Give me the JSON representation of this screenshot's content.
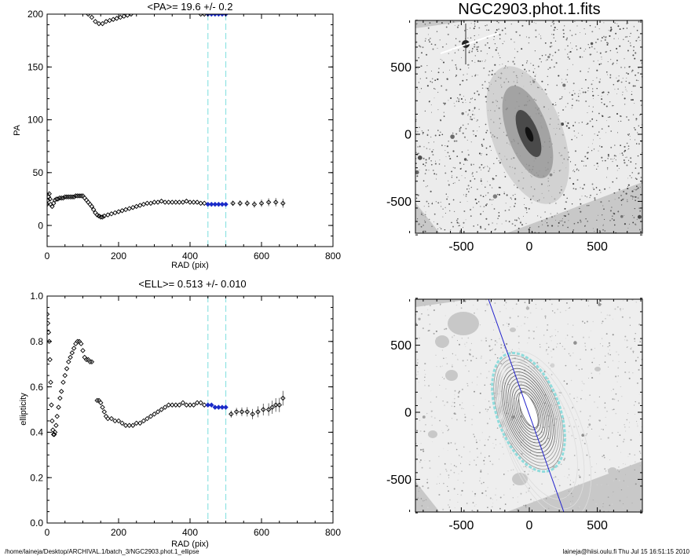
{
  "footer": {
    "path": "/home/laineja/Desktop/ARCHIVAL.1/batch_3/NGC2903.phot.1_ellipse",
    "stamp": "laineja@hiisi.oulu.fi  Thu Jul 15 16:51:15 2010"
  },
  "colors": {
    "axis": "#000000",
    "marker": "#000000",
    "selected_marker": "#1a2bc8",
    "band_line": "#8fe3e3",
    "image_bg": "#c8c8c8",
    "image_field": "#eeeeee",
    "contour_band": "#8fdcdc",
    "pa_line": "#2222cc"
  },
  "chart_data": [
    {
      "id": "pa",
      "type": "scatter",
      "title": "<PA>=  19.6 +/-   0.2",
      "xlabel": "RAD (pix)",
      "ylabel": "PA",
      "xlim": [
        0,
        800
      ],
      "ylim": [
        -20,
        200
      ],
      "xticks": [
        "0",
        "200",
        "400",
        "600",
        "800"
      ],
      "yticks": [
        "0",
        "50",
        "100",
        "150",
        "200"
      ],
      "band": [
        450,
        500
      ],
      "series": [
        {
          "points": [
            [
              0,
              20
            ],
            [
              2,
              24
            ],
            [
              4,
              27
            ],
            [
              6,
              30
            ],
            [
              8,
              25
            ],
            [
              10,
              20
            ],
            [
              14,
              18
            ],
            [
              18,
              21
            ],
            [
              22,
              24
            ],
            [
              26,
              25
            ],
            [
              30,
              25
            ],
            [
              35,
              26
            ],
            [
              40,
              26
            ],
            [
              45,
              26
            ],
            [
              50,
              27
            ],
            [
              55,
              27
            ],
            [
              60,
              27
            ],
            [
              65,
              27
            ],
            [
              70,
              27
            ],
            [
              75,
              27
            ],
            [
              80,
              28
            ],
            [
              85,
              28
            ],
            [
              90,
              28
            ],
            [
              95,
              28
            ],
            [
              100,
              28
            ],
            [
              105,
              26
            ],
            [
              110,
              24
            ],
            [
              115,
              22
            ],
            [
              120,
              20
            ],
            [
              125,
              18
            ],
            [
              130,
              15
            ],
            [
              135,
              12
            ],
            [
              140,
              10
            ],
            [
              145,
              9
            ],
            [
              150,
              8
            ],
            [
              155,
              8
            ],
            [
              160,
              9
            ],
            [
              170,
              10
            ],
            [
              180,
              11
            ],
            [
              190,
              12
            ],
            [
              200,
              13
            ],
            [
              210,
              14
            ],
            [
              220,
              15
            ],
            [
              230,
              16
            ],
            [
              240,
              17
            ],
            [
              250,
              18
            ],
            [
              260,
              19
            ],
            [
              270,
              20
            ],
            [
              280,
              21
            ],
            [
              290,
              21
            ],
            [
              300,
              22
            ],
            [
              310,
              22
            ],
            [
              320,
              23
            ],
            [
              330,
              22
            ],
            [
              340,
              22
            ],
            [
              350,
              22
            ],
            [
              360,
              22
            ],
            [
              370,
              22
            ],
            [
              380,
              22
            ],
            [
              390,
              23
            ],
            [
              400,
              22
            ],
            [
              410,
              22
            ],
            [
              420,
              22
            ],
            [
              430,
              21
            ],
            [
              440,
              21
            ],
            [
              450,
              20
            ],
            [
              460,
              20
            ],
            [
              470,
              20
            ],
            [
              480,
              20
            ],
            [
              490,
              20
            ],
            [
              500,
              20
            ],
            [
              520,
              21
            ],
            [
              540,
              21
            ],
            [
              560,
              21
            ],
            [
              580,
              20
            ],
            [
              600,
              21
            ],
            [
              620,
              22
            ],
            [
              640,
              22
            ],
            [
              660,
              21
            ]
          ]
        },
        {
          "points": [
            [
              115,
              200
            ],
            [
              125,
              197
            ],
            [
              135,
              193
            ],
            [
              145,
              191
            ],
            [
              155,
              191
            ],
            [
              165,
              193
            ],
            [
              175,
              194
            ],
            [
              185,
              195
            ],
            [
              195,
              196
            ],
            [
              205,
              197
            ],
            [
              215,
              198
            ],
            [
              225,
              199
            ],
            [
              235,
              200
            ],
            [
              430,
              200
            ],
            [
              440,
              200
            ],
            [
              450,
              200
            ],
            [
              460,
              200
            ],
            [
              470,
              200
            ],
            [
              480,
              200
            ],
            [
              490,
              200
            ],
            [
              500,
              200
            ]
          ]
        }
      ]
    },
    {
      "id": "ell",
      "type": "scatter",
      "title": "<ELL>= 0.513 +/-  0.010",
      "xlabel": "RAD (pix)",
      "ylabel": "ellipticity",
      "xlim": [
        0,
        800
      ],
      "ylim": [
        0.0,
        1.0
      ],
      "xticks": [
        "0",
        "200",
        "400",
        "600",
        "800"
      ],
      "yticks": [
        "0.0",
        "0.2",
        "0.4",
        "0.6",
        "0.8",
        "1.0"
      ],
      "band": [
        450,
        500
      ],
      "series": [
        {
          "points": [
            [
              0,
              0.92
            ],
            [
              2,
              0.88
            ],
            [
              4,
              0.84
            ],
            [
              6,
              0.8
            ],
            [
              8,
              0.72
            ],
            [
              10,
              0.62
            ],
            [
              12,
              0.52
            ],
            [
              14,
              0.45
            ],
            [
              16,
              0.41
            ],
            [
              18,
              0.39
            ],
            [
              20,
              0.39
            ],
            [
              22,
              0.4
            ],
            [
              25,
              0.43
            ],
            [
              28,
              0.47
            ],
            [
              32,
              0.51
            ],
            [
              36,
              0.55
            ],
            [
              40,
              0.58
            ],
            [
              45,
              0.62
            ],
            [
              50,
              0.65
            ],
            [
              55,
              0.68
            ],
            [
              60,
              0.71
            ],
            [
              65,
              0.73
            ],
            [
              70,
              0.75
            ],
            [
              75,
              0.77
            ],
            [
              80,
              0.79
            ],
            [
              85,
              0.8
            ],
            [
              90,
              0.8
            ],
            [
              95,
              0.79
            ],
            [
              100,
              0.76
            ],
            [
              105,
              0.73
            ],
            [
              110,
              0.72
            ],
            [
              115,
              0.72
            ],
            [
              120,
              0.71
            ],
            [
              125,
              0.71
            ],
            [
              140,
              0.54
            ],
            [
              145,
              0.54
            ],
            [
              150,
              0.53
            ],
            [
              155,
              0.51
            ],
            [
              160,
              0.49
            ],
            [
              165,
              0.47
            ],
            [
              170,
              0.46
            ],
            [
              180,
              0.46
            ],
            [
              190,
              0.45
            ],
            [
              200,
              0.45
            ],
            [
              210,
              0.44
            ],
            [
              220,
              0.43
            ],
            [
              230,
              0.43
            ],
            [
              240,
              0.43
            ],
            [
              250,
              0.44
            ],
            [
              260,
              0.44
            ],
            [
              270,
              0.45
            ],
            [
              280,
              0.46
            ],
            [
              290,
              0.47
            ],
            [
              300,
              0.48
            ],
            [
              310,
              0.49
            ],
            [
              320,
              0.5
            ],
            [
              330,
              0.51
            ],
            [
              340,
              0.52
            ],
            [
              350,
              0.52
            ],
            [
              360,
              0.52
            ],
            [
              370,
              0.52
            ],
            [
              380,
              0.53
            ],
            [
              390,
              0.52
            ],
            [
              400,
              0.52
            ],
            [
              410,
              0.52
            ],
            [
              420,
              0.53
            ],
            [
              430,
              0.53
            ],
            [
              440,
              0.52
            ],
            [
              450,
              0.52
            ],
            [
              460,
              0.52
            ],
            [
              470,
              0.51
            ],
            [
              480,
              0.51
            ],
            [
              490,
              0.51
            ],
            [
              500,
              0.51
            ],
            [
              515,
              0.48
            ],
            [
              530,
              0.49
            ],
            [
              545,
              0.49
            ],
            [
              560,
              0.49
            ],
            [
              575,
              0.48
            ],
            [
              590,
              0.49
            ],
            [
              605,
              0.5
            ],
            [
              620,
              0.5
            ],
            [
              630,
              0.51
            ],
            [
              640,
              0.52
            ],
            [
              650,
              0.52
            ],
            [
              660,
              0.55
            ]
          ]
        }
      ]
    },
    {
      "id": "img1",
      "type": "image",
      "title": "NGC2903.phot.1.fits",
      "xlim": [
        -880,
        880
      ],
      "ylim": [
        -750,
        850
      ],
      "xticks": [
        "-500",
        "0",
        "500"
      ],
      "yticks": [
        "-500",
        "0",
        "500"
      ]
    },
    {
      "id": "img2",
      "type": "image",
      "title": "",
      "xlim": [
        -880,
        880
      ],
      "ylim": [
        -750,
        850
      ],
      "xticks": [
        "-500",
        "0",
        "500"
      ],
      "yticks": [
        "-500",
        "0",
        "500"
      ]
    }
  ]
}
